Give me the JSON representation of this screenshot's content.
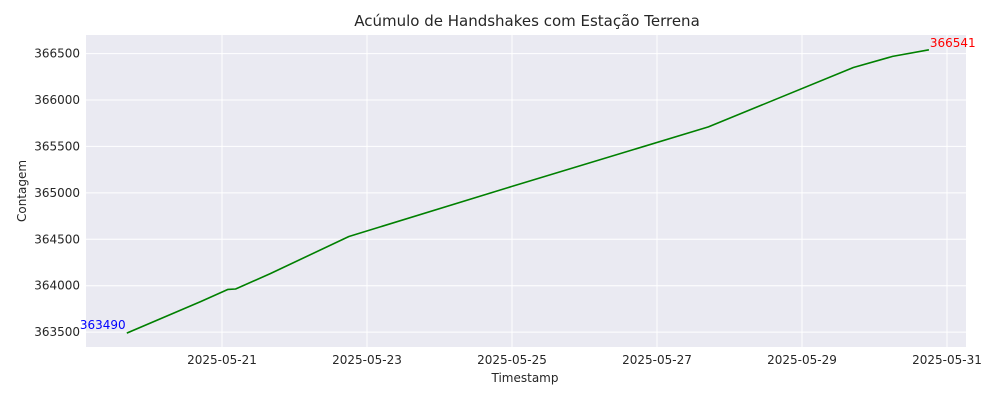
{
  "chart_data": {
    "type": "line",
    "title": "Acúmulo de Handshakes com Estação Terrena",
    "xlabel": "Timestamp",
    "ylabel": "Contagem",
    "x_tick_labels": [
      "2025-05-21",
      "2025-05-23",
      "2025-05-25",
      "2025-05-27",
      "2025-05-29",
      "2025-05-31"
    ],
    "x_ticks": [
      "2025-05-21",
      "2025-05-23",
      "2025-05-25",
      "2025-05-27",
      "2025-05-29",
      "2025-05-31"
    ],
    "xlim": [
      "2025-05-19 00:00",
      "2025-05-31 00:00"
    ],
    "y_tick_labels": [
      "363500",
      "364000",
      "364500",
      "365000",
      "365500",
      "366000",
      "366500"
    ],
    "y_ticks": [
      363500,
      364000,
      364500,
      365000,
      365500,
      366000,
      366500
    ],
    "ylim": [
      363340,
      366700
    ],
    "grid": true,
    "series": [
      {
        "color": "#008000",
        "points": [
          {
            "x": "2025-05-19 16:30",
            "y": 363490
          },
          {
            "x": "2025-05-20 17:00",
            "y": 363830
          },
          {
            "x": "2025-05-21 02:00",
            "y": 363960
          },
          {
            "x": "2025-05-21 04:30",
            "y": 363965
          },
          {
            "x": "2025-05-21 16:00",
            "y": 364130
          },
          {
            "x": "2025-05-22 18:00",
            "y": 364530
          },
          {
            "x": "2025-05-25 00:00",
            "y": 365070
          },
          {
            "x": "2025-05-27 17:00",
            "y": 365710
          },
          {
            "x": "2025-05-29 17:00",
            "y": 366350
          },
          {
            "x": "2025-05-30 06:00",
            "y": 366470
          },
          {
            "x": "2025-05-30 18:00",
            "y": 366541
          }
        ]
      }
    ],
    "annotations": [
      {
        "text": "363490",
        "color": "#0000ff",
        "anchor": "start"
      },
      {
        "text": "366541",
        "color": "#ff0000",
        "anchor": "end"
      }
    ],
    "colors": {
      "plot_background": "#eaeaf2",
      "grid": "#ffffff",
      "line": "#008000"
    }
  }
}
